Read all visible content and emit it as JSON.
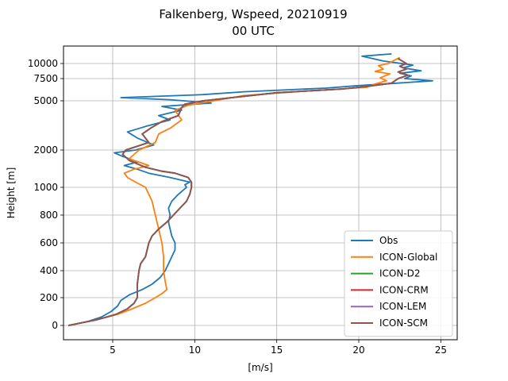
{
  "chart_data": {
    "type": "line",
    "title_line1": "Falkenberg, Wspeed, 20210919",
    "title_line2": "00 UTC",
    "xlabel": "[m/s]",
    "ylabel": "Height [m]",
    "xlim": [
      2.0,
      26.0
    ],
    "xticks": [
      "5",
      "10",
      "15",
      "20",
      "25"
    ],
    "yticks": [
      "0",
      "200",
      "400",
      "600",
      "800",
      "1000",
      "2000",
      "5000",
      "7500",
      "10000"
    ],
    "grid": true,
    "legend_position": "lower-right",
    "series": [
      {
        "name": "Obs",
        "color": "#1f77b4",
        "points": [
          [
            2.4,
            0
          ],
          [
            3.5,
            30
          ],
          [
            4.3,
            60
          ],
          [
            4.9,
            100
          ],
          [
            5.3,
            140
          ],
          [
            5.5,
            180
          ],
          [
            6.0,
            220
          ],
          [
            6.8,
            260
          ],
          [
            7.4,
            300
          ],
          [
            7.9,
            350
          ],
          [
            8.2,
            400
          ],
          [
            8.4,
            450
          ],
          [
            8.6,
            500
          ],
          [
            8.8,
            550
          ],
          [
            8.8,
            600
          ],
          [
            8.6,
            650
          ],
          [
            8.5,
            700
          ],
          [
            8.4,
            750
          ],
          [
            8.5,
            800
          ],
          [
            8.4,
            850
          ],
          [
            8.6,
            900
          ],
          [
            9.0,
            950
          ],
          [
            9.5,
            1000
          ],
          [
            9.4,
            1050
          ],
          [
            9.7,
            1100
          ],
          [
            8.5,
            1200
          ],
          [
            7.2,
            1300
          ],
          [
            6.5,
            1400
          ],
          [
            5.7,
            1500
          ],
          [
            6.5,
            1600
          ],
          [
            6.0,
            1700
          ],
          [
            5.5,
            1800
          ],
          [
            5.1,
            1900
          ],
          [
            6.4,
            2000
          ],
          [
            7.5,
            2200
          ],
          [
            6.5,
            2500
          ],
          [
            5.9,
            2800
          ],
          [
            7.0,
            3100
          ],
          [
            8.5,
            3500
          ],
          [
            7.8,
            3800
          ],
          [
            9.2,
            4200
          ],
          [
            8.0,
            4500
          ],
          [
            11.0,
            4800
          ],
          [
            8.5,
            5100
          ],
          [
            5.5,
            5300
          ],
          [
            10.5,
            5600
          ],
          [
            13.0,
            5900
          ],
          [
            18.0,
            6300
          ],
          [
            20.0,
            6600
          ],
          [
            22.3,
            6900
          ],
          [
            24.5,
            7200
          ],
          [
            22.8,
            7500
          ],
          [
            23.2,
            7900
          ],
          [
            22.5,
            8300
          ],
          [
            23.8,
            8700
          ],
          [
            22.7,
            9200
          ],
          [
            23.3,
            9700
          ],
          [
            21.5,
            10200
          ],
          [
            20.2,
            10600
          ],
          [
            22.0,
            10800
          ]
        ]
      },
      {
        "name": "ICON-Global",
        "color": "#ff7f0e",
        "points": [
          [
            2.3,
            0
          ],
          [
            4.0,
            40
          ],
          [
            5.3,
            80
          ],
          [
            6.2,
            120
          ],
          [
            7.0,
            160
          ],
          [
            7.6,
            200
          ],
          [
            8.0,
            230
          ],
          [
            8.3,
            260
          ],
          [
            8.2,
            320
          ],
          [
            8.1,
            400
          ],
          [
            8.1,
            500
          ],
          [
            8.0,
            600
          ],
          [
            7.8,
            700
          ],
          [
            7.6,
            800
          ],
          [
            7.4,
            900
          ],
          [
            7.0,
            1000
          ],
          [
            6.4,
            1100
          ],
          [
            5.9,
            1200
          ],
          [
            5.7,
            1300
          ],
          [
            6.3,
            1400
          ],
          [
            7.2,
            1500
          ],
          [
            6.0,
            1700
          ],
          [
            6.6,
            2000
          ],
          [
            7.6,
            2300
          ],
          [
            7.8,
            2700
          ],
          [
            8.5,
            3000
          ],
          [
            9.2,
            3500
          ],
          [
            8.8,
            4200
          ],
          [
            9.6,
            4600
          ],
          [
            13.0,
            5500
          ],
          [
            17.0,
            6000
          ],
          [
            20.5,
            6400
          ],
          [
            21.0,
            6800
          ],
          [
            21.7,
            7200
          ],
          [
            21.3,
            7600
          ],
          [
            21.9,
            8200
          ],
          [
            21.0,
            8600
          ],
          [
            21.5,
            9000
          ],
          [
            21.2,
            9600
          ],
          [
            21.8,
            10000
          ],
          [
            22.5,
            10500
          ]
        ]
      },
      {
        "name": "ICON-D2",
        "color": "#2ca02c",
        "points": [
          [
            2.3,
            0
          ],
          [
            4.0,
            40
          ],
          [
            5.2,
            80
          ],
          [
            5.9,
            120
          ],
          [
            6.3,
            160
          ],
          [
            6.5,
            200
          ],
          [
            6.5,
            300
          ],
          [
            6.6,
            400
          ],
          [
            6.7,
            450
          ],
          [
            7.0,
            500
          ],
          [
            7.2,
            600
          ],
          [
            7.4,
            650
          ],
          [
            7.8,
            700
          ],
          [
            8.3,
            750
          ],
          [
            8.7,
            800
          ],
          [
            9.1,
            850
          ],
          [
            9.5,
            900
          ],
          [
            9.7,
            950
          ],
          [
            9.8,
            1000
          ],
          [
            9.8,
            1100
          ],
          [
            9.6,
            1200
          ],
          [
            8.8,
            1300
          ],
          [
            8.0,
            1350
          ],
          [
            7.0,
            1450
          ],
          [
            6.0,
            1650
          ],
          [
            5.6,
            1850
          ],
          [
            5.8,
            2000
          ],
          [
            7.2,
            2300
          ],
          [
            6.8,
            2700
          ],
          [
            7.3,
            3000
          ],
          [
            8.0,
            3400
          ],
          [
            9.0,
            3800
          ],
          [
            9.2,
            4400
          ],
          [
            9.4,
            4700
          ],
          [
            10.5,
            5000
          ],
          [
            15.0,
            5800
          ],
          [
            19.0,
            6200
          ],
          [
            20.5,
            6500
          ],
          [
            22.0,
            6900
          ],
          [
            22.4,
            7500
          ],
          [
            23.0,
            8000
          ],
          [
            22.4,
            8500
          ],
          [
            22.9,
            9000
          ],
          [
            22.5,
            9500
          ],
          [
            22.9,
            10000
          ],
          [
            22.4,
            10400
          ]
        ]
      },
      {
        "name": "ICON-CRM",
        "color": "#d62728",
        "points": [
          [
            2.3,
            0
          ],
          [
            4.0,
            40
          ],
          [
            5.2,
            80
          ],
          [
            5.9,
            120
          ],
          [
            6.3,
            160
          ],
          [
            6.5,
            200
          ],
          [
            6.5,
            300
          ],
          [
            6.6,
            400
          ],
          [
            6.7,
            450
          ],
          [
            7.0,
            500
          ],
          [
            7.2,
            600
          ],
          [
            7.4,
            650
          ],
          [
            7.8,
            700
          ],
          [
            8.3,
            750
          ],
          [
            8.7,
            800
          ],
          [
            9.1,
            850
          ],
          [
            9.5,
            900
          ],
          [
            9.7,
            950
          ],
          [
            9.8,
            1000
          ],
          [
            9.8,
            1100
          ],
          [
            9.6,
            1200
          ],
          [
            8.8,
            1300
          ],
          [
            8.0,
            1350
          ],
          [
            7.0,
            1450
          ],
          [
            6.0,
            1650
          ],
          [
            5.6,
            1850
          ],
          [
            5.8,
            2000
          ],
          [
            7.2,
            2300
          ],
          [
            6.8,
            2700
          ],
          [
            7.3,
            3000
          ],
          [
            8.0,
            3400
          ],
          [
            9.0,
            3800
          ],
          [
            9.2,
            4400
          ],
          [
            9.4,
            4700
          ],
          [
            10.5,
            5000
          ],
          [
            15.0,
            5800
          ],
          [
            19.0,
            6200
          ],
          [
            20.5,
            6500
          ],
          [
            22.0,
            6900
          ],
          [
            22.4,
            7500
          ],
          [
            23.0,
            8000
          ],
          [
            22.4,
            8500
          ],
          [
            22.9,
            9000
          ],
          [
            22.5,
            9500
          ],
          [
            22.9,
            10000
          ],
          [
            22.4,
            10400
          ]
        ]
      },
      {
        "name": "ICON-LEM",
        "color": "#9467bd",
        "points": [
          [
            2.3,
            0
          ],
          [
            4.0,
            40
          ],
          [
            5.2,
            80
          ],
          [
            5.9,
            120
          ],
          [
            6.3,
            160
          ],
          [
            6.5,
            200
          ],
          [
            6.5,
            300
          ],
          [
            6.6,
            400
          ],
          [
            6.7,
            450
          ],
          [
            7.0,
            500
          ],
          [
            7.2,
            600
          ],
          [
            7.4,
            650
          ],
          [
            7.8,
            700
          ],
          [
            8.3,
            750
          ],
          [
            8.7,
            800
          ],
          [
            9.1,
            850
          ],
          [
            9.5,
            900
          ],
          [
            9.7,
            950
          ],
          [
            9.8,
            1000
          ],
          [
            9.8,
            1100
          ],
          [
            9.6,
            1200
          ],
          [
            8.8,
            1300
          ],
          [
            8.0,
            1350
          ],
          [
            7.0,
            1450
          ],
          [
            6.0,
            1650
          ],
          [
            5.6,
            1850
          ],
          [
            5.8,
            2000
          ],
          [
            7.2,
            2300
          ],
          [
            6.8,
            2700
          ],
          [
            7.3,
            3000
          ],
          [
            8.0,
            3400
          ],
          [
            9.0,
            3800
          ],
          [
            9.2,
            4400
          ],
          [
            9.4,
            4700
          ],
          [
            10.5,
            5000
          ],
          [
            15.0,
            5800
          ],
          [
            19.0,
            6200
          ],
          [
            20.5,
            6500
          ],
          [
            22.0,
            6900
          ],
          [
            22.4,
            7500
          ],
          [
            23.0,
            8000
          ],
          [
            22.4,
            8500
          ],
          [
            22.9,
            9000
          ],
          [
            22.5,
            9500
          ],
          [
            22.9,
            10000
          ],
          [
            22.4,
            10400
          ]
        ]
      },
      {
        "name": "ICON-SCM",
        "color": "#8c564b",
        "points": [
          [
            2.3,
            0
          ],
          [
            4.0,
            40
          ],
          [
            5.2,
            80
          ],
          [
            5.9,
            120
          ],
          [
            6.3,
            160
          ],
          [
            6.5,
            200
          ],
          [
            6.5,
            300
          ],
          [
            6.6,
            400
          ],
          [
            6.7,
            450
          ],
          [
            7.0,
            500
          ],
          [
            7.2,
            600
          ],
          [
            7.4,
            650
          ],
          [
            7.8,
            700
          ],
          [
            8.3,
            750
          ],
          [
            8.7,
            800
          ],
          [
            9.1,
            850
          ],
          [
            9.5,
            900
          ],
          [
            9.7,
            950
          ],
          [
            9.8,
            1000
          ],
          [
            9.8,
            1100
          ],
          [
            9.6,
            1200
          ],
          [
            8.8,
            1300
          ],
          [
            8.0,
            1350
          ],
          [
            7.0,
            1450
          ],
          [
            6.0,
            1650
          ],
          [
            5.6,
            1850
          ],
          [
            5.8,
            2000
          ],
          [
            7.2,
            2300
          ],
          [
            6.8,
            2700
          ],
          [
            7.3,
            3000
          ],
          [
            8.0,
            3400
          ],
          [
            9.0,
            3800
          ],
          [
            9.2,
            4400
          ],
          [
            9.4,
            4700
          ],
          [
            10.5,
            5000
          ],
          [
            15.0,
            5800
          ],
          [
            19.0,
            6200
          ],
          [
            20.5,
            6500
          ],
          [
            22.0,
            6900
          ],
          [
            22.4,
            7500
          ],
          [
            23.0,
            8000
          ],
          [
            22.4,
            8500
          ],
          [
            22.9,
            9000
          ],
          [
            22.5,
            9500
          ],
          [
            22.9,
            10000
          ],
          [
            22.4,
            10400
          ]
        ]
      }
    ]
  }
}
